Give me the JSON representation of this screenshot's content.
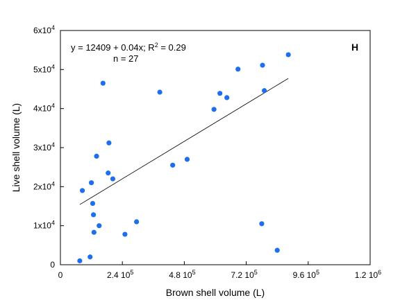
{
  "chart_data": {
    "type": "scatter",
    "xlabel": "Brown shell volume (L)",
    "ylabel": "Live shell volume (L)",
    "xlim": [
      0,
      1200000
    ],
    "ylim": [
      0,
      60000
    ],
    "x_ticks": [
      {
        "value": 0,
        "base": "0",
        "exp": ""
      },
      {
        "value": 240000,
        "base": "2.4 10",
        "exp": "5"
      },
      {
        "value": 480000,
        "base": "4.8 10",
        "exp": "5"
      },
      {
        "value": 720000,
        "base": "7.2 10",
        "exp": "5"
      },
      {
        "value": 960000,
        "base": "9.6 10",
        "exp": "5"
      },
      {
        "value": 1200000,
        "base": "1.2 10",
        "exp": "6"
      }
    ],
    "y_ticks": [
      {
        "value": 0,
        "base": "0",
        "exp": ""
      },
      {
        "value": 10000,
        "base": "1x10",
        "exp": "4"
      },
      {
        "value": 20000,
        "base": "2x10",
        "exp": "4"
      },
      {
        "value": 30000,
        "base": "3x10",
        "exp": "4"
      },
      {
        "value": 40000,
        "base": "4x10",
        "exp": "4"
      },
      {
        "value": 50000,
        "base": "5x10",
        "exp": "4"
      },
      {
        "value": 60000,
        "base": "6x10",
        "exp": "4"
      }
    ],
    "grid": false,
    "panel_label": "H",
    "annotation": {
      "line1_before": "y = 12409 + 0.04x; R",
      "line1_sup": "2",
      "line1_after": " = 0.29",
      "line2": "n = 27"
    },
    "point_color": "#1e6ff0",
    "series": [
      {
        "points": [
          {
            "x": 75000,
            "y": 1000
          },
          {
            "x": 115000,
            "y": 2000
          },
          {
            "x": 85000,
            "y": 19000
          },
          {
            "x": 120000,
            "y": 21000
          },
          {
            "x": 125000,
            "y": 15700
          },
          {
            "x": 128000,
            "y": 12800
          },
          {
            "x": 130000,
            "y": 8300
          },
          {
            "x": 140000,
            "y": 27800
          },
          {
            "x": 150000,
            "y": 10000
          },
          {
            "x": 165000,
            "y": 46500
          },
          {
            "x": 185000,
            "y": 23500
          },
          {
            "x": 188000,
            "y": 31200
          },
          {
            "x": 203000,
            "y": 22000
          },
          {
            "x": 250000,
            "y": 7800
          },
          {
            "x": 295000,
            "y": 11000
          },
          {
            "x": 385000,
            "y": 44200
          },
          {
            "x": 435000,
            "y": 25500
          },
          {
            "x": 491000,
            "y": 27000
          },
          {
            "x": 595000,
            "y": 39800
          },
          {
            "x": 618000,
            "y": 43900
          },
          {
            "x": 645000,
            "y": 42800
          },
          {
            "x": 688000,
            "y": 50100
          },
          {
            "x": 783000,
            "y": 51100
          },
          {
            "x": 790000,
            "y": 44600
          },
          {
            "x": 780000,
            "y": 10500
          },
          {
            "x": 840000,
            "y": 3700
          },
          {
            "x": 883000,
            "y": 53800
          }
        ]
      }
    ],
    "regression": {
      "intercept": 12409,
      "slope": 0.04,
      "x_range": [
        75000,
        883000
      ]
    }
  }
}
